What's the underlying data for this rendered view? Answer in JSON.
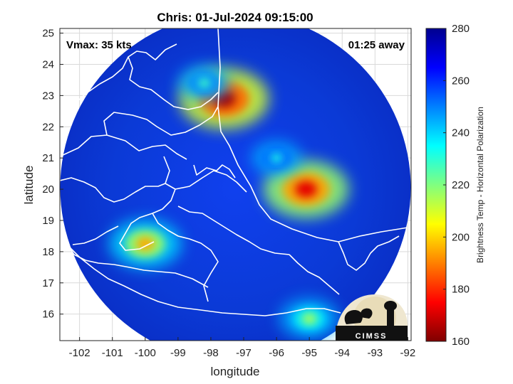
{
  "chart_data": {
    "type": "heatmap",
    "title": "Chris: 01-Jul-2024 09:15:00",
    "xlabel": "longitude",
    "ylabel": "latitude",
    "xlim": [
      -102.6,
      -91.9
    ],
    "ylim": [
      15.15,
      25.15
    ],
    "x_ticks": [
      -102,
      -101,
      -100,
      -99,
      -98,
      -97,
      -96,
      -95,
      -94,
      -93,
      -92
    ],
    "x_tick_labels": [
      "-102",
      "-101",
      "-100",
      "-99",
      "-98",
      "-97",
      "-96",
      "-95",
      "-94",
      "-93",
      "-92"
    ],
    "y_ticks": [
      16,
      17,
      18,
      19,
      20,
      21,
      22,
      23,
      24,
      25
    ],
    "y_tick_labels": [
      "16",
      "17",
      "18",
      "19",
      "20",
      "21",
      "22",
      "23",
      "24",
      "25"
    ],
    "grid": true,
    "annotations": {
      "vmax": "Vmax: 35 kts",
      "time_away": "01:25 away"
    },
    "colorbar": {
      "label": "Brightness Temp - Horizontal Polarization",
      "range": [
        160,
        280
      ],
      "ticks": [
        160,
        180,
        200,
        220,
        240,
        260,
        280
      ],
      "tick_labels": [
        "160",
        "180",
        "200",
        "220",
        "240",
        "260",
        "280"
      ],
      "colormap": [
        "#7f0000",
        "#ff0000",
        "#ff8000",
        "#ffff00",
        "#80ff80",
        "#00ffff",
        "#0080ff",
        "#0000ff",
        "#00008f"
      ]
    },
    "swath": {
      "center_lon": -97.25,
      "center_lat": 20.05,
      "background_value": 262
    },
    "features": [
      {
        "lon": -97.6,
        "lat": 22.9,
        "value": 165
      },
      {
        "lon": -95.1,
        "lat": 20.0,
        "value": 172
      },
      {
        "lon": -100.0,
        "lat": 18.25,
        "value": 195
      },
      {
        "lon": -98.2,
        "lat": 23.4,
        "value": 228
      },
      {
        "lon": -96.0,
        "lat": 21.0,
        "value": 232
      },
      {
        "lon": -95.0,
        "lat": 15.85,
        "value": 215
      }
    ]
  },
  "logo": {
    "text": "CIMSS"
  }
}
